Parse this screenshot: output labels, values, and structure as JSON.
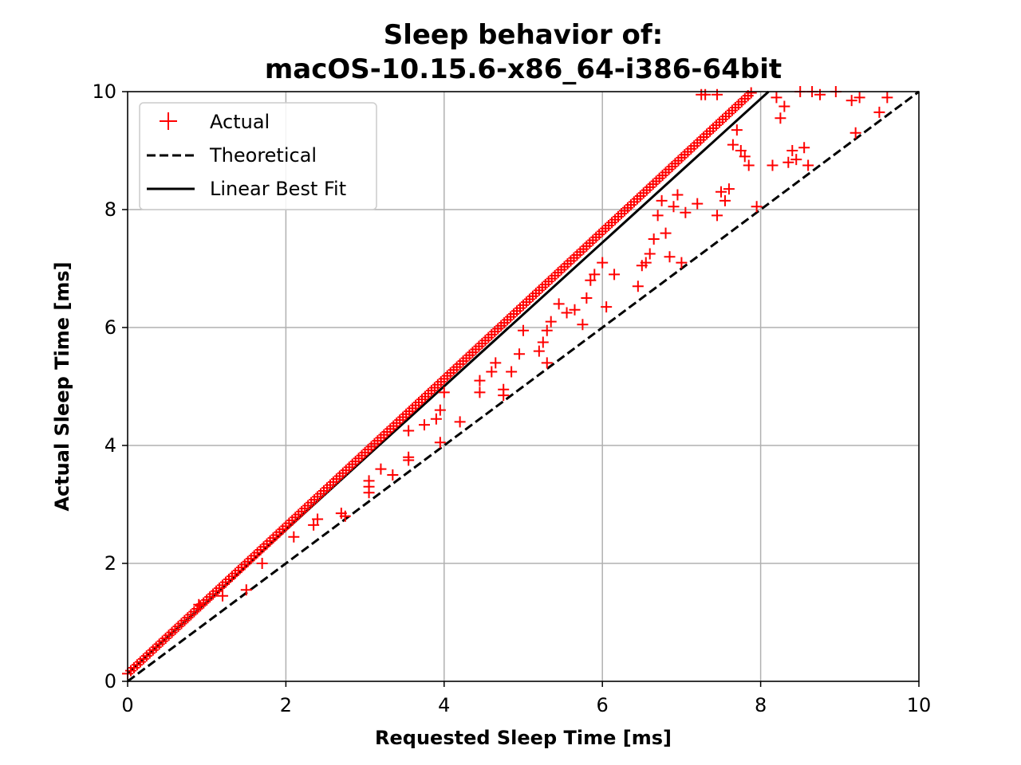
{
  "chart_data": {
    "type": "scatter",
    "title": [
      "Sleep behavior of:",
      "macOS-10.15.6-x86_64-i386-64bit"
    ],
    "xlabel": "Requested Sleep Time [ms]",
    "ylabel": "Actual Sleep Time [ms]",
    "xlim": [
      0,
      10
    ],
    "ylim": [
      0,
      10
    ],
    "xticks": [
      0,
      2,
      4,
      6,
      8,
      10
    ],
    "yticks": [
      0,
      2,
      4,
      6,
      8,
      10
    ],
    "xtick_labels": [
      "0",
      "2",
      "4",
      "6",
      "8",
      "10"
    ],
    "ytick_labels": [
      "0",
      "2",
      "4",
      "6",
      "8",
      "10"
    ],
    "grid": true,
    "legend_position": "top-left",
    "series": [
      {
        "name": "Actual",
        "kind": "markers",
        "marker": "plus",
        "color": "#ff0000",
        "main_trend": {
          "x_from": 0.0,
          "x_to": 7.9,
          "step": 0.04,
          "slope": 1.25,
          "intercept": 0.13
        },
        "outliers": [
          [
            0.9,
            1.3
          ],
          [
            1.2,
            1.45
          ],
          [
            1.5,
            1.55
          ],
          [
            1.7,
            2.0
          ],
          [
            2.1,
            2.45
          ],
          [
            2.35,
            2.65
          ],
          [
            2.4,
            2.75
          ],
          [
            2.7,
            2.85
          ],
          [
            2.75,
            2.8
          ],
          [
            3.05,
            3.2
          ],
          [
            3.05,
            3.3
          ],
          [
            3.2,
            3.6
          ],
          [
            3.05,
            3.4
          ],
          [
            3.35,
            3.5
          ],
          [
            3.55,
            3.75
          ],
          [
            3.55,
            3.8
          ],
          [
            3.55,
            4.25
          ],
          [
            3.75,
            4.35
          ],
          [
            3.9,
            4.45
          ],
          [
            3.95,
            4.05
          ],
          [
            3.95,
            4.6
          ],
          [
            4.0,
            4.9
          ],
          [
            4.2,
            4.4
          ],
          [
            4.45,
            4.9
          ],
          [
            4.45,
            5.1
          ],
          [
            4.6,
            5.25
          ],
          [
            4.65,
            5.4
          ],
          [
            4.75,
            4.85
          ],
          [
            4.75,
            4.95
          ],
          [
            4.85,
            5.25
          ],
          [
            4.95,
            5.55
          ],
          [
            5.0,
            5.95
          ],
          [
            5.2,
            5.6
          ],
          [
            5.25,
            5.75
          ],
          [
            5.3,
            5.4
          ],
          [
            5.3,
            5.95
          ],
          [
            5.35,
            6.1
          ],
          [
            5.45,
            6.4
          ],
          [
            5.55,
            6.25
          ],
          [
            5.65,
            6.3
          ],
          [
            5.75,
            6.05
          ],
          [
            5.8,
            6.5
          ],
          [
            5.85,
            6.8
          ],
          [
            5.9,
            6.9
          ],
          [
            6.0,
            7.1
          ],
          [
            6.05,
            6.35
          ],
          [
            6.15,
            6.9
          ],
          [
            6.45,
            6.7
          ],
          [
            6.5,
            7.05
          ],
          [
            6.55,
            7.1
          ],
          [
            6.6,
            7.25
          ],
          [
            6.65,
            7.5
          ],
          [
            6.7,
            7.9
          ],
          [
            6.75,
            8.15
          ],
          [
            6.8,
            7.6
          ],
          [
            6.85,
            7.2
          ],
          [
            6.9,
            8.05
          ],
          [
            6.95,
            8.25
          ],
          [
            7.0,
            7.1
          ],
          [
            7.05,
            7.95
          ],
          [
            7.2,
            8.1
          ],
          [
            7.45,
            7.9
          ],
          [
            7.5,
            8.3
          ],
          [
            7.55,
            8.15
          ],
          [
            7.6,
            8.35
          ],
          [
            7.65,
            9.1
          ],
          [
            7.7,
            9.35
          ],
          [
            7.75,
            9.0
          ],
          [
            7.8,
            8.9
          ],
          [
            7.85,
            8.75
          ],
          [
            7.95,
            8.05
          ],
          [
            8.15,
            8.75
          ],
          [
            8.2,
            9.9
          ],
          [
            8.25,
            9.55
          ],
          [
            8.3,
            9.75
          ],
          [
            8.35,
            8.8
          ],
          [
            8.4,
            9.0
          ],
          [
            8.45,
            8.85
          ],
          [
            8.5,
            10.0
          ],
          [
            8.55,
            9.05
          ],
          [
            8.6,
            8.75
          ],
          [
            8.65,
            10.0
          ],
          [
            8.75,
            9.95
          ],
          [
            8.95,
            10.0
          ],
          [
            9.15,
            9.85
          ],
          [
            9.2,
            9.3
          ],
          [
            9.25,
            9.9
          ],
          [
            9.5,
            9.65
          ],
          [
            9.6,
            9.9
          ],
          [
            7.25,
            9.95
          ],
          [
            7.3,
            9.95
          ],
          [
            7.45,
            9.95
          ]
        ]
      },
      {
        "name": "Theoretical",
        "kind": "line",
        "dash": "dashed",
        "color": "#000000",
        "x": [
          0,
          10
        ],
        "y": [
          0,
          10
        ]
      },
      {
        "name": "Linear Best Fit",
        "kind": "line",
        "dash": "solid",
        "color": "#000000",
        "x": [
          0,
          8.1
        ],
        "y": [
          0.13,
          10.0
        ]
      }
    ]
  }
}
